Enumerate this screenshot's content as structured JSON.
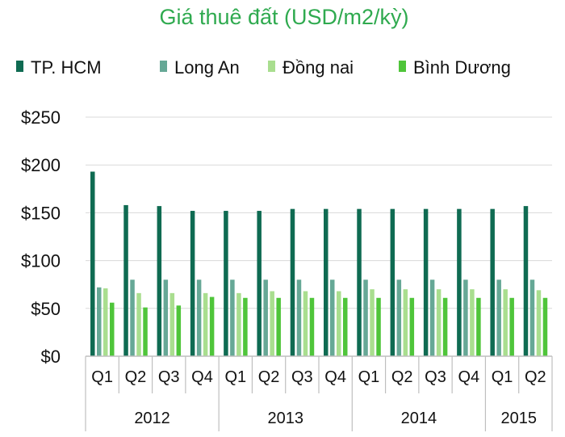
{
  "chart_data": {
    "type": "bar",
    "title": "Giá thuê đất (USD/m2/kỳ)",
    "xlabel": "",
    "ylabel": "",
    "ylim": [
      0,
      250
    ],
    "yticks": [
      0,
      50,
      100,
      150,
      200,
      250
    ],
    "ytick_labels": [
      "$0",
      "$50",
      "$100",
      "$150",
      "$200",
      "$250"
    ],
    "grid": true,
    "legend_position": "top",
    "categories": [
      "Q1",
      "Q2",
      "Q3",
      "Q4",
      "Q1",
      "Q2",
      "Q3",
      "Q4",
      "Q1",
      "Q2",
      "Q3",
      "Q4",
      "Q1",
      "Q2"
    ],
    "groups": [
      {
        "label": "2012",
        "count": 4
      },
      {
        "label": "2013",
        "count": 4
      },
      {
        "label": "2014",
        "count": 4
      },
      {
        "label": "2015",
        "count": 2
      }
    ],
    "series": [
      {
        "name": "TP. HCM",
        "color": "#0f6b52",
        "values": [
          193,
          158,
          157,
          152,
          152,
          152,
          154,
          154,
          154,
          154,
          154,
          154,
          154,
          157
        ]
      },
      {
        "name": "Long An",
        "color": "#66a896",
        "values": [
          72,
          80,
          80,
          80,
          80,
          80,
          80,
          80,
          80,
          80,
          80,
          80,
          80,
          80
        ]
      },
      {
        "name": "Đồng nai",
        "color": "#a9de8f",
        "values": [
          71,
          66,
          66,
          66,
          66,
          68,
          68,
          68,
          70,
          70,
          70,
          70,
          70,
          69
        ]
      },
      {
        "name": "Bình Dương",
        "color": "#4fc53a",
        "values": [
          56,
          51,
          53,
          62,
          61,
          61,
          61,
          61,
          61,
          61,
          61,
          61,
          61,
          61
        ]
      }
    ]
  }
}
